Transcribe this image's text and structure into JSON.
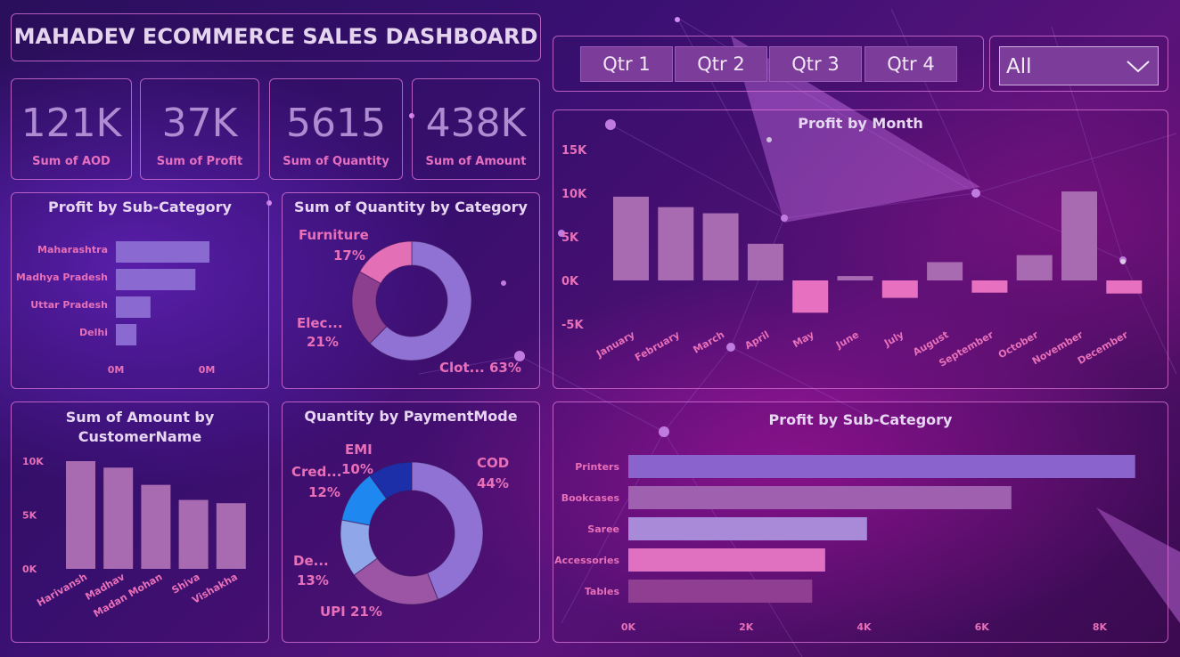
{
  "header": {
    "title": "MAHADEV ECOMMERCE SALES DASHBOARD"
  },
  "kpis": [
    {
      "value": "121K",
      "label": "Sum of AOD"
    },
    {
      "value": "37K",
      "label": "Sum of Profit"
    },
    {
      "value": "5615",
      "label": "Sum of Quantity"
    },
    {
      "value": "438K",
      "label": "Sum of Amount"
    }
  ],
  "quarters": [
    "Qtr 1",
    "Qtr 2",
    "Qtr 3",
    "Qtr 4"
  ],
  "slicer": {
    "selected": "All"
  },
  "colors": {
    "bar": "#a86ab0",
    "negative": "#e870c0",
    "purple": "#8a6ad0",
    "pink": "#e870b8"
  },
  "chart_data": [
    {
      "type": "bar",
      "orientation": "horizontal",
      "title": "Profit by Sub-Category",
      "categories": [
        "Maharashtra",
        "Madhya Pradesh",
        "Uttar Pradesh",
        "Delhi"
      ],
      "values": [
        100,
        85,
        37,
        22
      ],
      "xticks": [
        "0M",
        "0M"
      ]
    },
    {
      "type": "pie",
      "donut": true,
      "title": "Sum of Quantity by Category",
      "slices": [
        {
          "label": "Clot...",
          "pct": "63%",
          "value": 63,
          "color": "#8f72d4"
        },
        {
          "label": "Elec...",
          "pct": "21%",
          "value": 21,
          "color": "#8c3f8e"
        },
        {
          "label": "Furniture",
          "pct": "17%",
          "value": 17,
          "color": "#e36fb7"
        }
      ]
    },
    {
      "type": "bar",
      "title": "Profit by Month",
      "categories": [
        "January",
        "February",
        "March",
        "April",
        "May",
        "June",
        "July",
        "August",
        "September",
        "October",
        "November",
        "December"
      ],
      "values": [
        9600,
        8400,
        7700,
        4200,
        -3700,
        500,
        -2000,
        2100,
        -1400,
        2900,
        10200,
        -1500
      ],
      "yticks": [
        {
          "v": 15000,
          "t": "15K"
        },
        {
          "v": 10000,
          "t": "10K"
        },
        {
          "v": 5000,
          "t": "5K"
        },
        {
          "v": 0,
          "t": "0K"
        },
        {
          "v": -5000,
          "t": "-5K"
        }
      ],
      "ylim": [
        -5000,
        15000
      ]
    },
    {
      "type": "bar",
      "title": "Sum of Amount by CustomerName",
      "categories": [
        "Harivansh",
        "Madhav",
        "Madan Mohan",
        "Shiva",
        "Vishakha"
      ],
      "values": [
        10000,
        9400,
        7800,
        6400,
        6100
      ],
      "yticks": [
        {
          "v": 10000,
          "t": "10K"
        },
        {
          "v": 5000,
          "t": "5K"
        },
        {
          "v": 0,
          "t": "0K"
        }
      ],
      "ylim": [
        0,
        10000
      ]
    },
    {
      "type": "pie",
      "donut": true,
      "title": "Quantity by PaymentMode",
      "slices": [
        {
          "label": "COD",
          "pct": "44%",
          "value": 44,
          "color": "#8f72d4"
        },
        {
          "label": "UPI",
          "pct": "21%",
          "value": 21,
          "color": "#9c55a5"
        },
        {
          "label": "De...",
          "pct": "13%",
          "value": 13,
          "color": "#8fa6e8"
        },
        {
          "label": "Cred...",
          "pct": "12%",
          "value": 12,
          "color": "#1e88f0"
        },
        {
          "label": "EMI",
          "pct": "10%",
          "value": 10,
          "color": "#1c2fa8"
        }
      ]
    },
    {
      "type": "bar",
      "orientation": "horizontal",
      "title": "Profit by Sub-Category",
      "categories": [
        "Printers",
        "Bookcases",
        "Saree",
        "Accessories",
        "Tables"
      ],
      "values": [
        8600,
        6500,
        4050,
        3340,
        3120
      ],
      "colors": [
        "#8a63cc",
        "#a060b0",
        "#a88ad8",
        "#e070c0",
        "#8f3e92"
      ],
      "xticks": [
        {
          "v": 0,
          "t": "0K"
        },
        {
          "v": 2000,
          "t": "2K"
        },
        {
          "v": 4000,
          "t": "4K"
        },
        {
          "v": 6000,
          "t": "6K"
        },
        {
          "v": 8000,
          "t": "8K"
        }
      ],
      "xlim": [
        0,
        8000
      ]
    }
  ]
}
